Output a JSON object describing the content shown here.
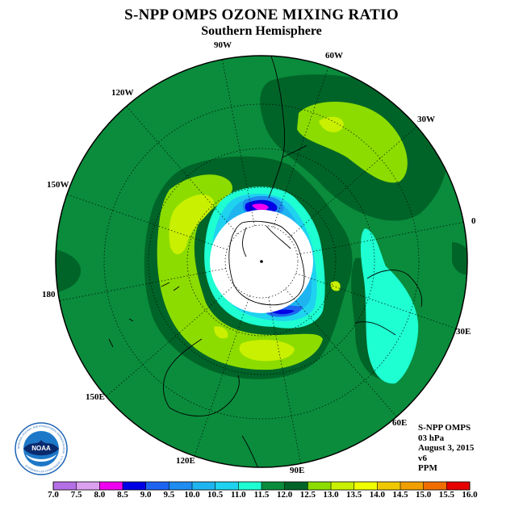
{
  "title": "S-NPP OMPS OZONE MIXING RATIO",
  "subtitle": "Southern Hemisphere",
  "longitude_labels": [
    "90W",
    "60W",
    "30W",
    "0",
    "30E",
    "60E",
    "90E",
    "120E",
    "150E",
    "180",
    "150W",
    "120W"
  ],
  "info": {
    "instrument": "S-NPP OMPS",
    "pressure": "03 hPa",
    "date": "August 3, 2015",
    "version": "v6",
    "unit": "PPM"
  },
  "logo": {
    "text": "NOAA",
    "ring_text": "NATIONAL OCEANIC AND ATMOSPHERIC ADMINISTRATION · U.S. DEPARTMENT OF COMMERCE"
  },
  "colorbar": {
    "labels": [
      "7.0",
      "7.5",
      "8.0",
      "8.5",
      "9.0",
      "9.5",
      "10.0",
      "10.5",
      "11.0",
      "11.5",
      "12.0",
      "12.5",
      "13.0",
      "13.5",
      "14.0",
      "14.5",
      "15.0",
      "15.5",
      "16.0"
    ],
    "colors": [
      "#b46ee6",
      "#dca0f0",
      "#f000f0",
      "#0000e6",
      "#1e64f0",
      "#1e8cf0",
      "#1eb4f0",
      "#1ed2f0",
      "#1effd2",
      "#0a8c3c",
      "#006428",
      "#8cdc00",
      "#c8f000",
      "#f0ff00",
      "#f0c800",
      "#f0a000",
      "#f06e00",
      "#e60000",
      "#8c5a46"
    ]
  },
  "colors": {
    "background_field": "#0a8c3c",
    "dark_green": "#006428",
    "pole_nodata": "#ffffff"
  }
}
